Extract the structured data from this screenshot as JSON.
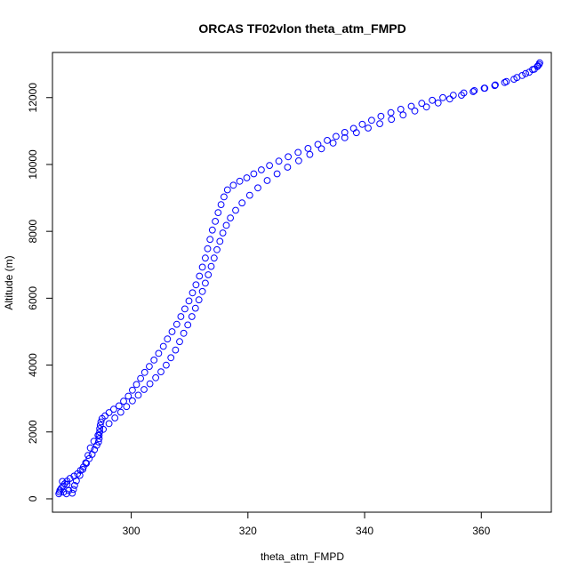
{
  "chart_data": {
    "type": "scatter",
    "title": "ORCAS TF02vlon theta_atm_FMPD",
    "xlabel": "theta_atm_FMPD",
    "ylabel": "Altitude (m)",
    "xlim": [
      286.5,
      372.0
    ],
    "ylim": [
      -400,
      13350
    ],
    "x_ticks": [
      300,
      320,
      340,
      360
    ],
    "y_ticks": [
      0,
      2000,
      4000,
      6000,
      8000,
      10000,
      12000
    ],
    "marker": "open-circle",
    "color": "#0000ff",
    "grid": false,
    "series": [
      {
        "name": "",
        "points": [
          [
            287.6,
            150
          ],
          [
            287.7,
            200
          ],
          [
            287.8,
            260
          ],
          [
            288.0,
            310
          ],
          [
            288.3,
            380
          ],
          [
            288.6,
            450
          ],
          [
            289.0,
            530
          ],
          [
            289.5,
            610
          ],
          [
            290.2,
            680
          ],
          [
            290.8,
            750
          ],
          [
            291.3,
            850
          ],
          [
            291.8,
            950
          ],
          [
            292.3,
            1060
          ],
          [
            292.8,
            1200
          ],
          [
            293.3,
            1330
          ],
          [
            293.7,
            1470
          ],
          [
            294.1,
            1600
          ],
          [
            294.4,
            1700
          ],
          [
            294.5,
            1800
          ],
          [
            294.5,
            1900
          ],
          [
            294.6,
            2000
          ],
          [
            294.6,
            2100
          ],
          [
            294.7,
            2200
          ],
          [
            294.8,
            2300
          ],
          [
            295.0,
            2400
          ],
          [
            295.5,
            2480
          ],
          [
            296.2,
            2580
          ],
          [
            297.0,
            2680
          ],
          [
            297.9,
            2780
          ],
          [
            298.7,
            2920
          ],
          [
            299.5,
            3070
          ],
          [
            300.2,
            3250
          ],
          [
            300.9,
            3420
          ],
          [
            301.6,
            3600
          ],
          [
            302.3,
            3780
          ],
          [
            303.1,
            3960
          ],
          [
            303.9,
            4150
          ],
          [
            304.7,
            4350
          ],
          [
            305.5,
            4560
          ],
          [
            306.2,
            4780
          ],
          [
            307.0,
            5000
          ],
          [
            307.8,
            5220
          ],
          [
            308.5,
            5450
          ],
          [
            309.2,
            5680
          ],
          [
            309.9,
            5920
          ],
          [
            310.5,
            6160
          ],
          [
            311.1,
            6400
          ],
          [
            311.7,
            6660
          ],
          [
            312.2,
            6930
          ],
          [
            312.7,
            7200
          ],
          [
            313.1,
            7480
          ],
          [
            313.5,
            7760
          ],
          [
            313.9,
            8040
          ],
          [
            314.4,
            8300
          ],
          [
            314.9,
            8560
          ],
          [
            315.4,
            8800
          ],
          [
            315.9,
            9030
          ],
          [
            316.5,
            9240
          ],
          [
            317.5,
            9380
          ],
          [
            318.6,
            9500
          ],
          [
            319.8,
            9600
          ],
          [
            321.0,
            9720
          ],
          [
            322.3,
            9840
          ],
          [
            323.7,
            9970
          ],
          [
            325.3,
            10100
          ],
          [
            326.9,
            10230
          ],
          [
            328.6,
            10360
          ],
          [
            330.3,
            10480
          ],
          [
            332.0,
            10600
          ],
          [
            333.6,
            10720
          ],
          [
            335.1,
            10840
          ],
          [
            336.6,
            10960
          ],
          [
            338.1,
            11080
          ],
          [
            339.6,
            11200
          ],
          [
            341.2,
            11320
          ],
          [
            342.8,
            11440
          ],
          [
            344.5,
            11550
          ],
          [
            346.2,
            11650
          ],
          [
            348.0,
            11740
          ],
          [
            349.8,
            11830
          ],
          [
            351.6,
            11920
          ],
          [
            353.4,
            12000
          ],
          [
            355.2,
            12070
          ],
          [
            357.0,
            12140
          ],
          [
            358.8,
            12210
          ],
          [
            360.6,
            12280
          ],
          [
            362.3,
            12360
          ],
          [
            364.0,
            12450
          ],
          [
            365.6,
            12550
          ],
          [
            367.0,
            12660
          ],
          [
            368.2,
            12760
          ],
          [
            369.1,
            12850
          ],
          [
            369.6,
            12930
          ],
          [
            369.9,
            12990
          ],
          [
            370.0,
            13040
          ],
          [
            369.7,
            12950
          ],
          [
            368.8,
            12840
          ],
          [
            367.6,
            12720
          ],
          [
            366.1,
            12600
          ],
          [
            364.3,
            12480
          ],
          [
            362.4,
            12380
          ],
          [
            360.5,
            12280
          ],
          [
            358.6,
            12180
          ],
          [
            356.6,
            12070
          ],
          [
            354.6,
            11960
          ],
          [
            352.6,
            11840
          ],
          [
            350.6,
            11720
          ],
          [
            348.6,
            11600
          ],
          [
            346.6,
            11480
          ],
          [
            344.6,
            11350
          ],
          [
            342.6,
            11220
          ],
          [
            340.6,
            11090
          ],
          [
            338.6,
            10950
          ],
          [
            336.6,
            10800
          ],
          [
            334.6,
            10640
          ],
          [
            332.6,
            10470
          ],
          [
            330.6,
            10300
          ],
          [
            328.7,
            10110
          ],
          [
            326.8,
            9920
          ],
          [
            325.0,
            9720
          ],
          [
            323.3,
            9520
          ],
          [
            321.7,
            9300
          ],
          [
            320.3,
            9080
          ],
          [
            319.0,
            8850
          ],
          [
            317.9,
            8630
          ],
          [
            317.0,
            8400
          ],
          [
            316.3,
            8180
          ],
          [
            315.7,
            7950
          ],
          [
            315.2,
            7700
          ],
          [
            314.7,
            7450
          ],
          [
            314.2,
            7200
          ],
          [
            313.7,
            6950
          ],
          [
            313.2,
            6700
          ],
          [
            312.7,
            6450
          ],
          [
            312.2,
            6200
          ],
          [
            311.6,
            5950
          ],
          [
            311.0,
            5700
          ],
          [
            310.4,
            5450
          ],
          [
            309.7,
            5200
          ],
          [
            309.0,
            4950
          ],
          [
            308.3,
            4700
          ],
          [
            307.6,
            4450
          ],
          [
            306.8,
            4220
          ],
          [
            306.0,
            4000
          ],
          [
            305.1,
            3800
          ],
          [
            304.2,
            3620
          ],
          [
            303.2,
            3440
          ],
          [
            302.2,
            3270
          ],
          [
            301.2,
            3100
          ],
          [
            300.2,
            2930
          ],
          [
            299.2,
            2760
          ],
          [
            298.2,
            2590
          ],
          [
            297.2,
            2420
          ],
          [
            296.2,
            2250
          ],
          [
            295.2,
            2080
          ],
          [
            294.3,
            1900
          ],
          [
            293.6,
            1720
          ],
          [
            293.0,
            1520
          ],
          [
            292.6,
            1300
          ],
          [
            292.2,
            1080
          ],
          [
            291.7,
            880
          ],
          [
            291.2,
            700
          ],
          [
            290.6,
            540
          ],
          [
            290.3,
            400
          ],
          [
            290.1,
            280
          ],
          [
            289.9,
            170
          ],
          [
            288.2,
            520
          ],
          [
            289.0,
            430
          ],
          [
            288.4,
            200
          ],
          [
            289.3,
            250
          ],
          [
            288.9,
            150
          ]
        ]
      }
    ]
  }
}
